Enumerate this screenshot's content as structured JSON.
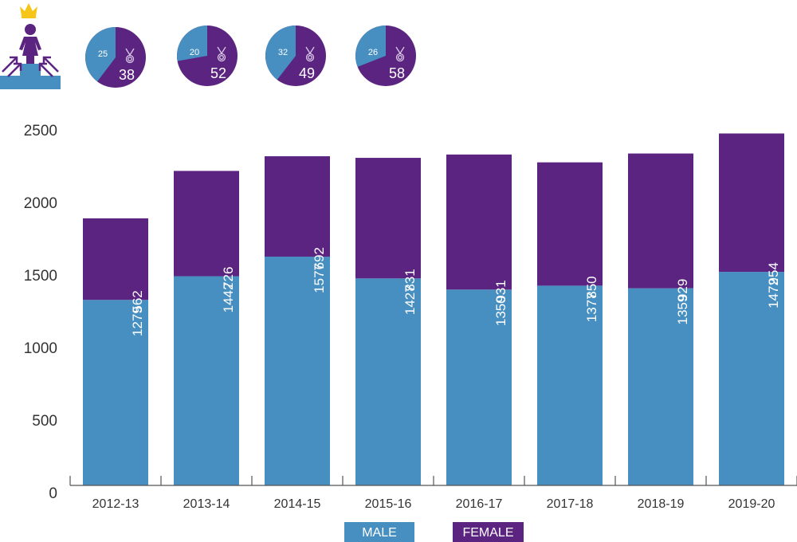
{
  "colors": {
    "male": "#478fc0",
    "female": "#5b2480",
    "crown": "#f5c518",
    "axis": "#555555",
    "text": "#333333"
  },
  "icons": {
    "header_icon": "woman-on-podium-with-crown-icon",
    "pie_icon": "medal-icon"
  },
  "pies": [
    {
      "male": 25,
      "female": 38
    },
    {
      "male": 20,
      "female": 52
    },
    {
      "male": 32,
      "female": 49
    },
    {
      "male": 26,
      "female": 58
    }
  ],
  "legend": {
    "male_label": "MALE",
    "female_label": "FEMALE"
  },
  "chart_data": {
    "type": "bar",
    "stacked": true,
    "title": "",
    "xlabel": "",
    "ylabel": "",
    "categories": [
      "2012-13",
      "2013-14",
      "2014-15",
      "2015-16",
      "2016-17",
      "2017-18",
      "2018-19",
      "2019-20"
    ],
    "series": [
      {
        "name": "MALE",
        "values": [
          1279,
          1442,
          1577,
          1427,
          1350,
          1377,
          1359,
          1472
        ]
      },
      {
        "name": "FEMALE",
        "values": [
          562,
          726,
          692,
          831,
          931,
          850,
          929,
          954
        ]
      }
    ],
    "yticks": [
      0,
      500,
      1000,
      1500,
      2000,
      2500
    ],
    "ylim": [
      0,
      2500
    ],
    "grid": false,
    "legend_position": "bottom-center",
    "data_labels": "rotated vertical, inside each segment"
  }
}
